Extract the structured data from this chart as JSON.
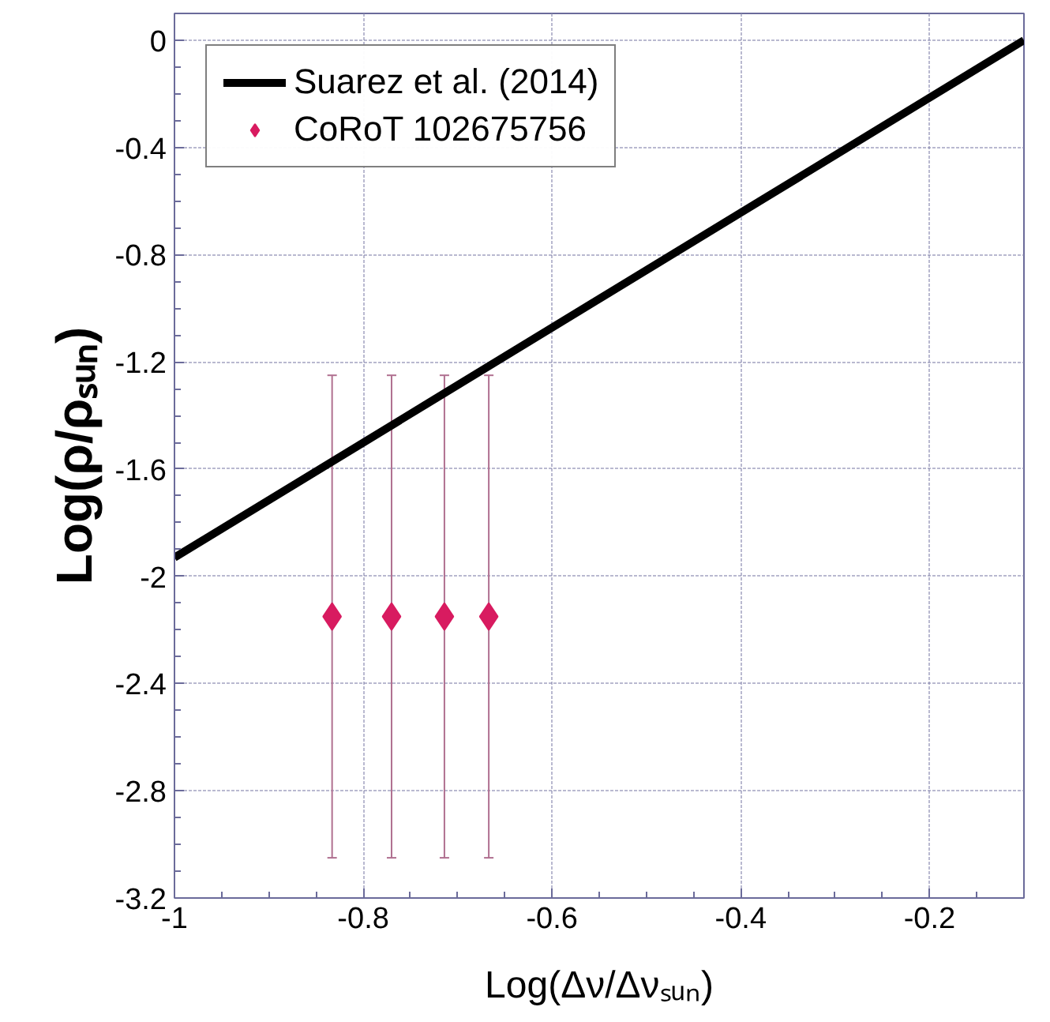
{
  "chart_data": {
    "type": "scatter",
    "xlabel": "Log(Δν/Δνₛᵤₙ)",
    "ylabel": "Log(ρ/ρₛᵤₙ)",
    "xlim": [
      -1,
      -0.1
    ],
    "ylim": [
      -3.2,
      0.1
    ],
    "xticks": [
      -1,
      -0.8,
      -0.6,
      -0.4,
      -0.2
    ],
    "yticks": [
      0,
      -0.4,
      -0.8,
      -1.2,
      -1.6,
      -2,
      -2.4,
      -2.8,
      -3.2
    ],
    "grid": true,
    "legend": "top left",
    "series": [
      {
        "name": "Suarez et al. (2014)",
        "type": "line",
        "color": "#000000",
        "x": [
          -1,
          -0.1
        ],
        "values": [
          -1.93,
          0
        ],
        "line_style": "solid"
      },
      {
        "name": "CoRoT 102675756",
        "color": "#d81b60",
        "marker": "diamond",
        "x": [
          -0.833,
          -0.77,
          -0.714,
          -0.667
        ],
        "values": [
          -2.15,
          -2.15,
          -2.15,
          -2.15
        ],
        "errors": [
          0.9,
          0.9,
          0.9,
          0.9
        ]
      }
    ]
  }
}
